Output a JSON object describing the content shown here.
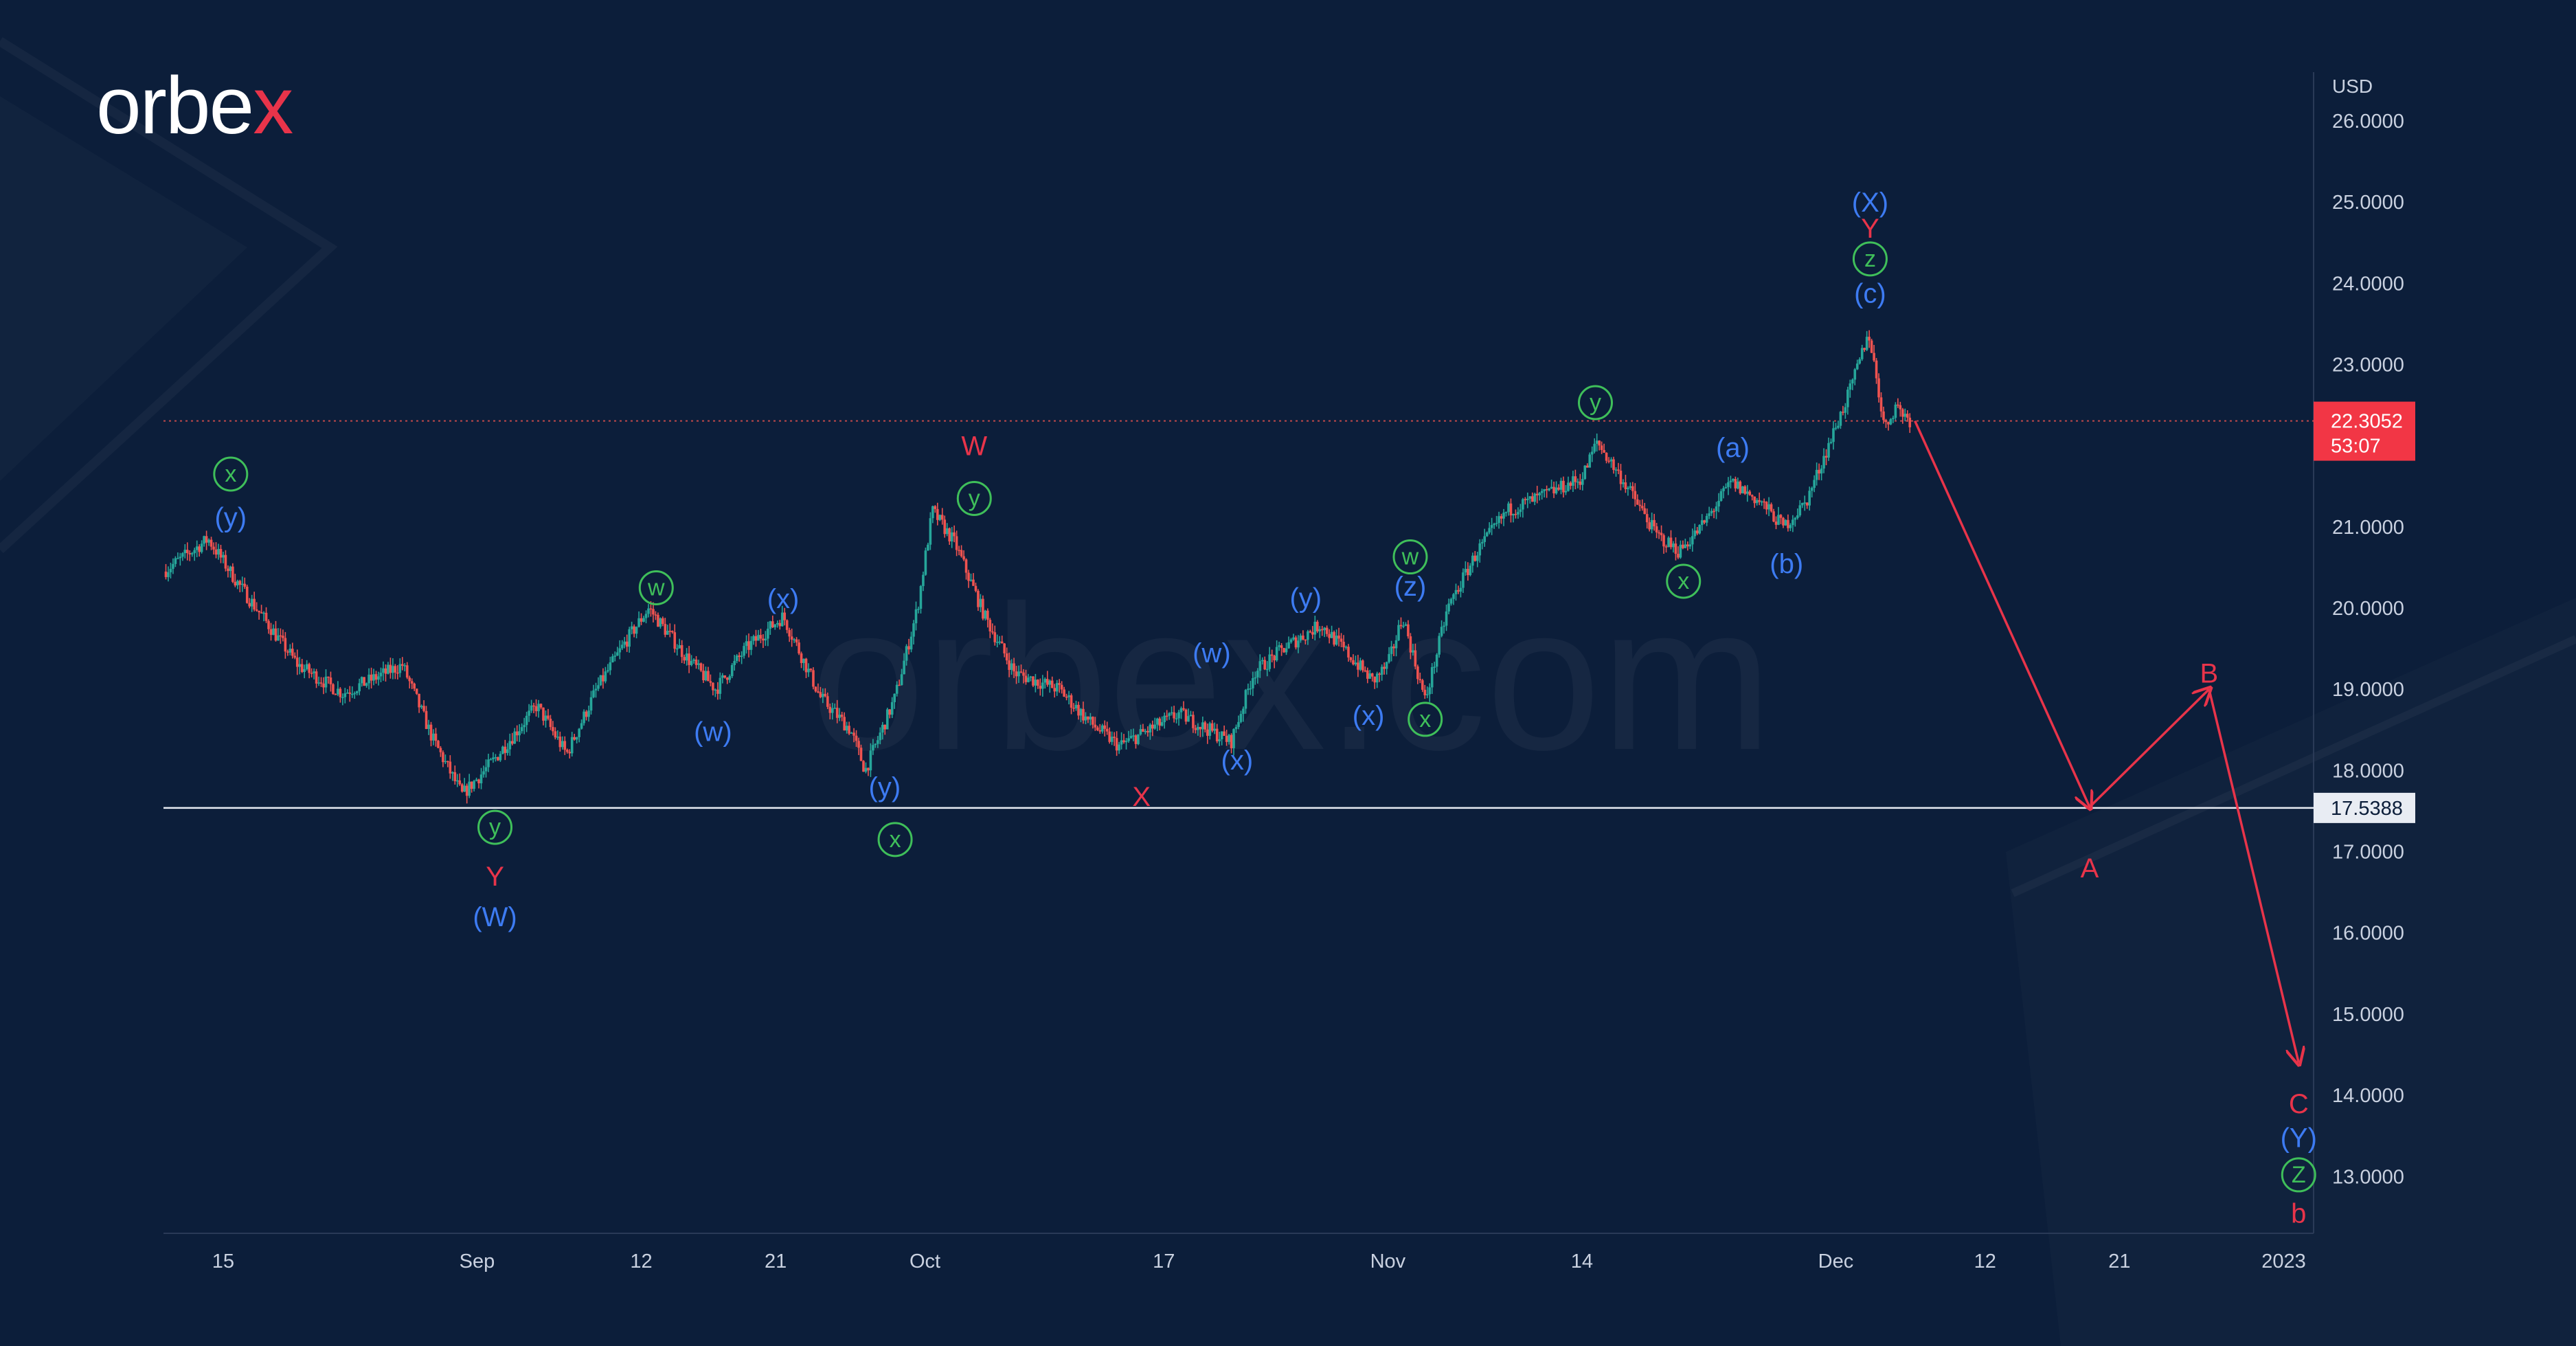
{
  "brand": {
    "name_prefix": "orbe",
    "name_suffix": "x",
    "watermark": "orbex.com"
  },
  "colors": {
    "background": "#0c1e3a",
    "candle_up": "#26a69a",
    "candle_down": "#ef5350",
    "label_red": "#e8344a",
    "label_blue": "#3d7bf2",
    "label_green": "#3fbf5a",
    "axis_text": "#c9d1e0",
    "price_tag_bg": "#f23645"
  },
  "chart_data": {
    "type": "candlestick",
    "currency": "USD",
    "ylim": [
      12.3,
      26.6
    ],
    "y_ticks": [
      "26.0000",
      "25.0000",
      "24.0000",
      "23.0000",
      "21.0000",
      "20.0000",
      "19.0000",
      "18.0000",
      "17.0000",
      "16.0000",
      "15.0000",
      "14.0000",
      "13.0000"
    ],
    "x_ticks": [
      {
        "label": "15",
        "day": 15
      },
      {
        "label": "Sep",
        "day": 32
      },
      {
        "label": "12",
        "day": 43
      },
      {
        "label": "21",
        "day": 52
      },
      {
        "label": "Oct",
        "day": 62
      },
      {
        "label": "17",
        "day": 78
      },
      {
        "label": "Nov",
        "day": 93
      },
      {
        "label": "14",
        "day": 106
      },
      {
        "label": "Dec",
        "day": 123
      },
      {
        "label": "12",
        "day": 133
      },
      {
        "label": "21",
        "day": 142
      },
      {
        "label": "2023",
        "day": 153
      }
    ],
    "x_range_days": [
      11,
      155
    ],
    "last_price": "22.3052",
    "countdown": "53:07",
    "support_level": "17.5388",
    "price_path": [
      [
        11,
        20.45
      ],
      [
        14,
        20.85
      ],
      [
        16,
        20.3
      ],
      [
        20,
        19.3
      ],
      [
        23,
        18.95
      ],
      [
        27,
        19.3
      ],
      [
        29,
        18.4
      ],
      [
        31,
        17.7
      ],
      [
        33,
        18.1
      ],
      [
        36,
        18.8
      ],
      [
        38,
        18.2
      ],
      [
        40,
        19.0
      ],
      [
        42,
        19.6
      ],
      [
        43.5,
        20.0
      ],
      [
        46,
        19.4
      ],
      [
        48,
        19.0
      ],
      [
        50,
        19.5
      ],
      [
        52.5,
        19.9
      ],
      [
        55,
        18.9
      ],
      [
        57,
        18.5
      ],
      [
        58,
        18.0
      ],
      [
        60,
        18.9
      ],
      [
        61.5,
        20.0
      ],
      [
        62.5,
        21.2
      ],
      [
        64,
        20.8
      ],
      [
        66,
        19.9
      ],
      [
        68,
        19.2
      ],
      [
        71,
        19.0
      ],
      [
        73,
        18.6
      ],
      [
        75,
        18.3
      ],
      [
        77,
        18.5
      ],
      [
        79,
        18.7
      ],
      [
        81,
        18.5
      ],
      [
        82.5,
        18.35
      ],
      [
        84,
        19.2
      ],
      [
        86,
        19.5
      ],
      [
        88.5,
        19.8
      ],
      [
        90,
        19.5
      ],
      [
        92,
        19.1
      ],
      [
        93,
        19.3
      ],
      [
        94,
        19.9
      ],
      [
        95.5,
        18.85
      ],
      [
        97,
        20.0
      ],
      [
        99,
        20.7
      ],
      [
        101,
        21.2
      ],
      [
        103,
        21.35
      ],
      [
        106,
        21.6
      ],
      [
        107,
        22.05
      ],
      [
        109,
        21.5
      ],
      [
        111,
        20.9
      ],
      [
        112.5,
        20.7
      ],
      [
        114,
        21.0
      ],
      [
        116,
        21.55
      ],
      [
        118,
        21.3
      ],
      [
        119.5,
        21.0
      ],
      [
        121,
        21.3
      ],
      [
        122.5,
        22.0
      ],
      [
        124,
        22.7
      ],
      [
        125.2,
        23.4
      ],
      [
        126.3,
        22.2
      ],
      [
        127,
        22.5
      ],
      [
        128,
        22.3052
      ]
    ],
    "projection": {
      "points": [
        {
          "label": "A",
          "day": 140,
          "price": 17.55
        },
        {
          "label": "B",
          "day": 148,
          "price": 19.0
        },
        {
          "label": "C",
          "day": 154,
          "price": 14.4
        }
      ]
    }
  },
  "wave_labels": [
    {
      "text": "x",
      "style": "circle-green",
      "day": 15.5,
      "price": 21.65
    },
    {
      "text": "(y)",
      "style": "blue",
      "day": 15.5,
      "price": 21.12
    },
    {
      "text": "y",
      "style": "circle-green",
      "day": 33.2,
      "price": 17.3
    },
    {
      "text": "Y",
      "style": "red",
      "day": 33.2,
      "price": 16.7
    },
    {
      "text": "(W)",
      "style": "blue",
      "day": 33.2,
      "price": 16.2
    },
    {
      "text": "w",
      "style": "circle-green",
      "day": 44,
      "price": 20.25
    },
    {
      "text": "(w)",
      "style": "blue",
      "day": 47.8,
      "price": 18.48
    },
    {
      "text": "(x)",
      "style": "blue",
      "day": 52.5,
      "price": 20.12
    },
    {
      "text": "(y)",
      "style": "blue",
      "day": 59.3,
      "price": 17.8
    },
    {
      "text": "x",
      "style": "circle-green",
      "day": 60,
      "price": 17.15
    },
    {
      "text": "W",
      "style": "red",
      "day": 65.3,
      "price": 22.0
    },
    {
      "text": "y",
      "style": "circle-green",
      "day": 65.3,
      "price": 21.35
    },
    {
      "text": "X",
      "style": "red",
      "day": 76.5,
      "price": 17.68
    },
    {
      "text": "(w)",
      "style": "blue",
      "day": 81.2,
      "price": 19.45
    },
    {
      "text": "(x)",
      "style": "blue",
      "day": 82.9,
      "price": 18.13
    },
    {
      "text": "(y)",
      "style": "blue",
      "day": 87.5,
      "price": 20.13
    },
    {
      "text": "(x)",
      "style": "blue",
      "day": 91.7,
      "price": 18.68
    },
    {
      "text": "w",
      "style": "circle-green",
      "day": 94.5,
      "price": 20.63
    },
    {
      "text": "(z)",
      "style": "blue",
      "day": 94.5,
      "price": 20.27
    },
    {
      "text": "x",
      "style": "circle-green",
      "day": 95.5,
      "price": 18.63
    },
    {
      "text": "y",
      "style": "circle-green",
      "day": 106.9,
      "price": 22.53
    },
    {
      "text": "(a)",
      "style": "blue",
      "day": 116.1,
      "price": 21.98
    },
    {
      "text": "x",
      "style": "circle-green",
      "day": 112.8,
      "price": 20.33
    },
    {
      "text": "(b)",
      "style": "blue",
      "day": 119.7,
      "price": 20.55
    },
    {
      "text": "(X)",
      "style": "blue",
      "day": 125.3,
      "price": 25.0
    },
    {
      "text": "Y",
      "style": "red",
      "day": 125.3,
      "price": 24.68
    },
    {
      "text": "z",
      "style": "circle-green",
      "day": 125.3,
      "price": 24.3
    },
    {
      "text": "(c)",
      "style": "blue",
      "day": 125.3,
      "price": 23.88
    },
    {
      "text": "A",
      "style": "red",
      "day": 140,
      "price": 16.8
    },
    {
      "text": "B",
      "style": "red",
      "day": 148,
      "price": 19.2
    },
    {
      "text": "C",
      "style": "red",
      "day": 154,
      "price": 13.9
    },
    {
      "text": "(Y)",
      "style": "blue",
      "day": 154,
      "price": 13.48
    },
    {
      "text": "Z",
      "style": "circle-green",
      "day": 154,
      "price": 13.02
    },
    {
      "text": "b",
      "style": "red",
      "day": 154,
      "price": 12.55
    }
  ]
}
